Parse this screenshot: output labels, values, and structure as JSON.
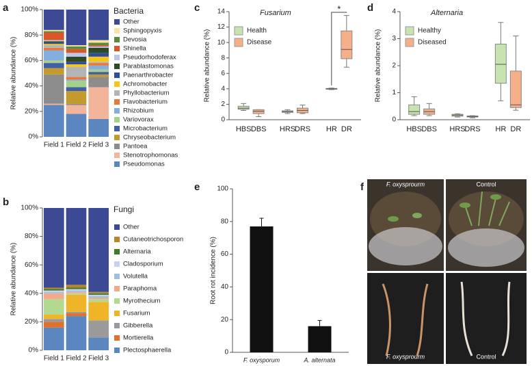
{
  "chart_data": [
    {
      "type": "stacked_bar",
      "panel": "a",
      "legend_title": "Bacteria",
      "y_label": "Relative abundance (%)",
      "categories": [
        "Field 1",
        "Field 2",
        "Field 3"
      ],
      "ylim": [
        0,
        100
      ],
      "yticks": [
        {
          "value": 0,
          "label": "0%"
        },
        {
          "value": 20,
          "label": "20%"
        },
        {
          "value": 40,
          "label": "40%"
        },
        {
          "value": 60,
          "label": "60%"
        },
        {
          "value": 80,
          "label": "80%"
        },
        {
          "value": 100,
          "label": "100%"
        }
      ],
      "series": [
        {
          "name": "Pseudomonas",
          "color": "#5b86c0",
          "values": [
            25,
            18,
            14
          ]
        },
        {
          "name": "Stenotrophomonas",
          "color": "#f2b49a",
          "values": [
            1,
            7,
            25
          ]
        },
        {
          "name": "Pantoea",
          "color": "#8c8c8c",
          "values": [
            23,
            1,
            8
          ]
        },
        {
          "name": "Chryseobacterium",
          "color": "#c59a2c",
          "values": [
            5,
            10,
            2
          ]
        },
        {
          "name": "Microbacterium",
          "color": "#3f5fa8",
          "values": [
            4,
            3,
            2
          ]
        },
        {
          "name": "Variovorax",
          "color": "#a6d08a",
          "values": [
            2,
            5,
            2
          ]
        },
        {
          "name": "Rhizobium",
          "color": "#84aee0",
          "values": [
            8,
            1,
            3
          ]
        },
        {
          "name": "Flavobacterium",
          "color": "#e87838",
          "values": [
            2,
            2,
            2
          ]
        },
        {
          "name": "Phyllobacterium",
          "color": "#b4b4b4",
          "values": [
            2,
            8,
            1
          ]
        },
        {
          "name": "Achromobacter",
          "color": "#f5c518",
          "values": [
            1,
            2,
            4
          ]
        },
        {
          "name": "Paenarthrobacter",
          "color": "#2e4d9a",
          "values": [
            1,
            2,
            3
          ]
        },
        {
          "name": "Parablastomonas",
          "color": "#2f4a22",
          "values": [
            1,
            4,
            4
          ]
        },
        {
          "name": "Pseudorhodoferax",
          "color": "#b9c6e8",
          "values": [
            1,
            3,
            1
          ]
        },
        {
          "name": "Shinella",
          "color": "#d9562b",
          "values": [
            6,
            3,
            1
          ]
        },
        {
          "name": "Devosia",
          "color": "#5a8a3a",
          "values": [
            1,
            2,
            2
          ]
        },
        {
          "name": "Sphingopyxis",
          "color": "#fbe2a0",
          "values": [
            1,
            1,
            2
          ]
        },
        {
          "name": "Other",
          "color": "#3c4a96",
          "values": [
            16,
            28,
            24
          ]
        }
      ]
    },
    {
      "type": "stacked_bar",
      "panel": "b",
      "legend_title": "Fungi",
      "y_label": "Relative abundance (%)",
      "categories": [
        "Field 1",
        "Field 2",
        "Field 3"
      ],
      "ylim": [
        0,
        100
      ],
      "yticks": [
        {
          "value": 0,
          "label": "0%"
        },
        {
          "value": 20,
          "label": "20%"
        },
        {
          "value": 40,
          "label": "40%"
        },
        {
          "value": 60,
          "label": "60%"
        },
        {
          "value": 80,
          "label": "80%"
        },
        {
          "value": 100,
          "label": "100%"
        }
      ],
      "series": [
        {
          "name": "Plectosphaerella",
          "color": "#5b86c0",
          "values": [
            16,
            24,
            9
          ]
        },
        {
          "name": "Mortierella",
          "color": "#e0702a",
          "values": [
            4,
            2,
            0
          ]
        },
        {
          "name": "Gibberella",
          "color": "#9a9a9a",
          "values": [
            2,
            1,
            12
          ]
        },
        {
          "name": "Fusarium",
          "color": "#f0b429",
          "values": [
            3,
            12,
            13
          ]
        },
        {
          "name": "Myrothecium",
          "color": "#b3d88f",
          "values": [
            11,
            1,
            2
          ]
        },
        {
          "name": "Paraphoma",
          "color": "#f3a98a",
          "values": [
            4,
            1,
            1
          ]
        },
        {
          "name": "Volutella",
          "color": "#9cc0e6",
          "values": [
            1,
            1,
            1
          ]
        },
        {
          "name": "Cladosporium",
          "color": "#c8d0f0",
          "values": [
            1,
            1,
            1
          ]
        },
        {
          "name": "Alternaria",
          "color": "#3d7a2a",
          "values": [
            1,
            1,
            1
          ]
        },
        {
          "name": "Cutaneotrichosporon",
          "color": "#b8862a",
          "values": [
            1,
            2,
            1
          ]
        },
        {
          "name": "Other",
          "color": "#3c4a96",
          "values": [
            56,
            54,
            59
          ]
        }
      ]
    },
    {
      "type": "box",
      "panel": "c",
      "title": "Fusarium",
      "y_label": "Relative abundance (%)",
      "significance": "*",
      "ylim": [
        0,
        14
      ],
      "yticks": [
        0,
        2,
        4,
        6,
        8,
        10,
        12,
        14
      ],
      "series": [
        {
          "name": "Health",
          "color": "#c6e3b0",
          "categories": [
            "HBS",
            "HRS",
            "HR"
          ],
          "boxes": [
            {
              "min": 1.2,
              "q1": 1.35,
              "median": 1.5,
              "q3": 1.75,
              "max": 2.1
            },
            {
              "min": 0.8,
              "q1": 0.95,
              "median": 1.05,
              "q3": 1.15,
              "max": 1.3
            },
            {
              "min": 3.9,
              "q1": 3.95,
              "median": 4.0,
              "q3": 4.05,
              "max": 4.1
            }
          ]
        },
        {
          "name": "Disease",
          "color": "#f5b08a",
          "categories": [
            "DBS",
            "DRS",
            "DR"
          ],
          "boxes": [
            {
              "min": 0.4,
              "q1": 0.8,
              "median": 1.1,
              "q3": 1.3,
              "max": 1.3
            },
            {
              "min": 0.8,
              "q1": 0.9,
              "median": 1.2,
              "q3": 1.5,
              "max": 1.9
            },
            {
              "min": 6.8,
              "q1": 7.9,
              "median": 9.1,
              "q3": 11.5,
              "max": 13.5
            }
          ]
        }
      ]
    },
    {
      "type": "box",
      "panel": "d",
      "title": "Alternaria",
      "y_label": "Relative  abundance  (%)",
      "ylim": [
        0,
        4
      ],
      "yticks": [
        0,
        1,
        2,
        3,
        4
      ],
      "series": [
        {
          "name": "Healthy",
          "color": "#c6e3b0",
          "categories": [
            "HBS",
            "HRS",
            "HR"
          ],
          "boxes": [
            {
              "min": 0.15,
              "q1": 0.2,
              "median": 0.3,
              "q3": 0.55,
              "max": 0.85
            },
            {
              "min": 0.1,
              "q1": 0.13,
              "median": 0.17,
              "q3": 0.2,
              "max": 0.22
            },
            {
              "min": 0.7,
              "q1": 1.35,
              "median": 2.05,
              "q3": 2.8,
              "max": 3.6
            }
          ]
        },
        {
          "name": "Diseased",
          "color": "#f5b08a",
          "categories": [
            "DBS",
            "DRS",
            "DR"
          ],
          "boxes": [
            {
              "min": 0.15,
              "q1": 0.2,
              "median": 0.3,
              "q3": 0.4,
              "max": 0.6
            },
            {
              "min": 0.07,
              "q1": 0.1,
              "median": 0.12,
              "q3": 0.14,
              "max": 0.15
            },
            {
              "min": 0.35,
              "q1": 0.45,
              "median": 0.55,
              "q3": 1.8,
              "max": 3.1
            }
          ]
        }
      ]
    },
    {
      "type": "error_bar",
      "panel": "e",
      "y_label": "Root rot incidence (%)",
      "color": "#111111",
      "categories": [
        "F. oxysporum",
        "A. alternata"
      ],
      "values": [
        77,
        16
      ],
      "errors": [
        5,
        3.5
      ],
      "ylim": [
        0,
        100
      ],
      "yticks": [
        0,
        20,
        40,
        60,
        80,
        100
      ]
    }
  ],
  "photo_panel": {
    "panel": "f",
    "labels": [
      "F. oxysprourm",
      "Control",
      "F. oxysprourm",
      "Control"
    ]
  }
}
